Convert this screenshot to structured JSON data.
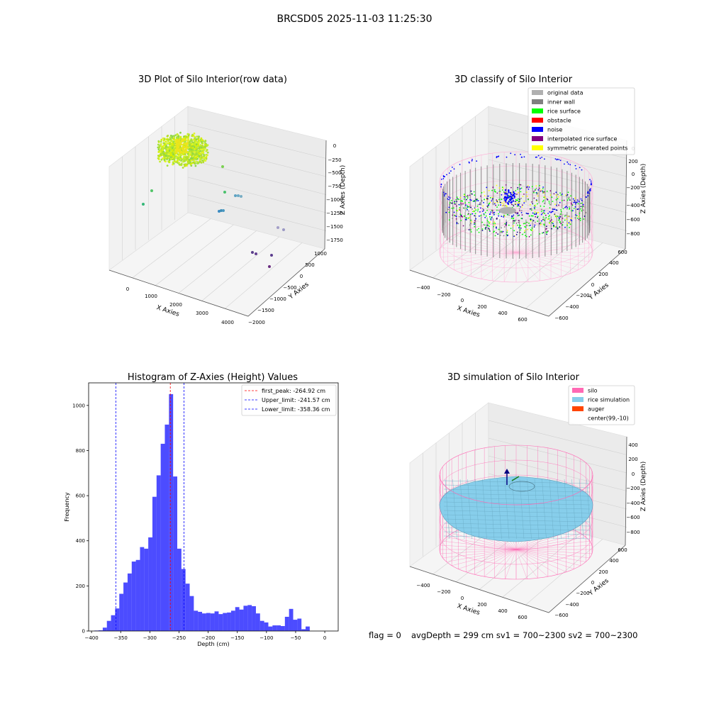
{
  "figure": {
    "suptitle": "BRCSD05 2025-11-03 11:25:30",
    "footer": {
      "flag": "flag = 0",
      "avg": "avgDepth = 299 cm  sv1 = 700~2300  sv2 = 700~2300"
    }
  },
  "chart_data": [
    {
      "type": "scatter",
      "projection": "3d",
      "title": "3D Plot of Silo Interior(row data)",
      "xlabel": "X Axies",
      "ylabel": "Y Axies",
      "zlabel": "Z Axies (Depth)",
      "xticks": [
        "0",
        "1000",
        "2000",
        "3000",
        "4000"
      ],
      "yticks": [
        "1000",
        "500",
        "0",
        "−500",
        "−1000",
        "−1500",
        "−2000"
      ],
      "zticks": [
        "0",
        "−250",
        "−500",
        "−750",
        "−1000",
        "−1250",
        "−1500",
        "−1750"
      ],
      "grid": true,
      "colormap": "viridis",
      "note": "dense ring cluster of points near depth -250 plus sparse outliers"
    },
    {
      "type": "scatter",
      "projection": "3d",
      "title": "3D classify of Silo Interior",
      "xlabel": "X Axies",
      "ylabel": "Y Axies",
      "zlabel": "Z Axies (Depth)",
      "xticks": [
        "−400",
        "−200",
        "0",
        "200",
        "400",
        "600"
      ],
      "yticks": [
        "600",
        "400",
        "200",
        "0",
        "−200",
        "−400",
        "−600"
      ],
      "zticks": [
        "200",
        "0",
        "−200",
        "−400",
        "−600",
        "−800"
      ],
      "ztop_tick": "0",
      "legend_position": "top-right",
      "legend": [
        {
          "label": "original data",
          "color": "#b0b0b0"
        },
        {
          "label": "inner wall",
          "color": "#808080"
        },
        {
          "label": "rice surface",
          "color": "#00ff00"
        },
        {
          "label": "obstacle",
          "color": "#ff0000"
        },
        {
          "label": "noise",
          "color": "#0000ff"
        },
        {
          "label": "interpolated rice surface",
          "color": "#800080"
        },
        {
          "label": "symmetric generated points",
          "color": "#ffff00"
        }
      ]
    },
    {
      "type": "bar",
      "title": "Histogram of Z-Axies (Height) Values",
      "xlabel": "Depth (cm)",
      "ylabel": "Frequency",
      "xlim": [
        -405,
        23
      ],
      "ylim": [
        0,
        1100
      ],
      "xticks": [
        -400,
        -350,
        -300,
        -250,
        -200,
        -150,
        -100,
        -50,
        0
      ],
      "yticks": [
        0,
        200,
        400,
        600,
        800,
        1000
      ],
      "bin_width": 7.1,
      "bin_start": -395.0,
      "color": "#0000ff",
      "values": [
        2,
        3,
        15,
        45,
        70,
        100,
        165,
        215,
        255,
        308,
        315,
        372,
        365,
        415,
        595,
        690,
        830,
        915,
        1050,
        685,
        365,
        275,
        210,
        155,
        90,
        85,
        78,
        80,
        78,
        87,
        75,
        80,
        82,
        90,
        106,
        95,
        112,
        115,
        110,
        78,
        45,
        38,
        20,
        25,
        25,
        22,
        63,
        98,
        50,
        55,
        8,
        20
      ],
      "legend_position": "top-right",
      "lines": [
        {
          "label": "first_peak: -264.92 cm",
          "x": -264.92,
          "color": "#ff0000"
        },
        {
          "label": "Upper_limit: -241.57 cm",
          "x": -241.57,
          "color": "#0000ff"
        },
        {
          "label": "Lower_limit: -358.36 cm",
          "x": -358.36,
          "color": "#0000ff"
        }
      ]
    },
    {
      "type": "area",
      "projection": "3d",
      "title": "3D simulation of Silo Interior",
      "xlabel": "X Axies",
      "ylabel": "Y Axies",
      "zlabel": "Z Axies (Depth)",
      "xticks": [
        "−400",
        "−200",
        "0",
        "200",
        "400",
        "600"
      ],
      "yticks": [
        "600",
        "400",
        "200",
        "0",
        "−200",
        "−400",
        "−600"
      ],
      "zticks": [
        "400",
        "200",
        "0",
        "−200",
        "−400",
        "−600",
        "−800"
      ],
      "legend_position": "top-right",
      "legend": [
        {
          "label": "silo",
          "color": "#ff69b4"
        },
        {
          "label": "rice simulation",
          "color": "#87ceeb"
        },
        {
          "label": "auger",
          "color": "#ff4500"
        },
        {
          "label": "center(99,-10)",
          "color": "#ffffff"
        }
      ]
    }
  ]
}
